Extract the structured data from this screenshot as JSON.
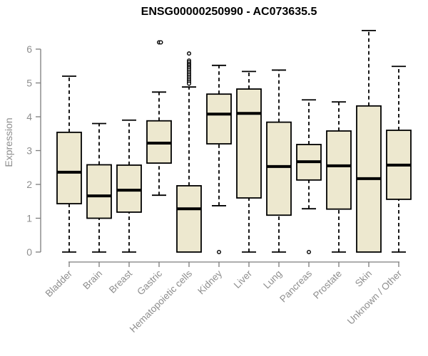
{
  "chart_data": {
    "type": "boxplot",
    "title": "ENSG00000250990 - AC073635.5",
    "ylabel": "Expression",
    "xlabel": "",
    "ylim": [
      0,
      6.6
    ],
    "yticks": [
      0,
      1,
      2,
      3,
      4,
      5,
      6
    ],
    "grid": false,
    "legend": "none",
    "colors": {
      "box_fill": "#EDE8CF",
      "box_stroke": "#000000",
      "axis_line": "#7d7d7d",
      "axis_text": "#8e8e8e",
      "title_text": "#000000"
    },
    "categories": [
      "Bladder",
      "Brain",
      "Breast",
      "Gastric",
      "Hematopoietic cells",
      "Kidney",
      "Liver",
      "Lung",
      "Pancreas",
      "Prostate",
      "Skin",
      "Unknown / Other"
    ],
    "series": [
      {
        "category": "Bladder",
        "whisker_low": 0.0,
        "q1": 1.43,
        "median": 2.36,
        "q3": 3.54,
        "whisker_high": 5.2,
        "outliers": []
      },
      {
        "category": "Brain",
        "whisker_low": 0.0,
        "q1": 1.0,
        "median": 1.66,
        "q3": 2.58,
        "whisker_high": 3.8,
        "outliers": []
      },
      {
        "category": "Breast",
        "whisker_low": 0.0,
        "q1": 1.18,
        "median": 1.83,
        "q3": 2.57,
        "whisker_high": 3.9,
        "outliers": []
      },
      {
        "category": "Gastric",
        "whisker_low": 1.68,
        "q1": 2.63,
        "median": 3.22,
        "q3": 3.88,
        "whisker_high": 4.73,
        "outliers": [
          6.2,
          6.2
        ]
      },
      {
        "category": "Hematopoietic cells",
        "whisker_low": 0.0,
        "q1": 0.0,
        "median": 1.28,
        "q3": 1.96,
        "whisker_high": 4.88,
        "outliers": [
          5.87,
          5.66,
          5.61,
          5.56,
          5.52,
          5.47,
          5.43,
          5.38,
          5.33,
          5.28,
          5.23,
          5.18,
          5.13,
          5.08,
          5.03,
          4.98
        ]
      },
      {
        "category": "Kidney",
        "whisker_low": 1.37,
        "q1": 3.2,
        "median": 4.08,
        "q3": 4.67,
        "whisker_high": 5.52,
        "outliers": [
          0.0
        ]
      },
      {
        "category": "Liver",
        "whisker_low": 0.0,
        "q1": 1.6,
        "median": 4.1,
        "q3": 4.82,
        "whisker_high": 5.34,
        "outliers": []
      },
      {
        "category": "Lung",
        "whisker_low": 0.0,
        "q1": 1.09,
        "median": 2.53,
        "q3": 3.84,
        "whisker_high": 5.38,
        "outliers": []
      },
      {
        "category": "Pancreas",
        "whisker_low": 1.28,
        "q1": 2.13,
        "median": 2.67,
        "q3": 3.18,
        "whisker_high": 4.5,
        "outliers": [
          0.0
        ]
      },
      {
        "category": "Prostate",
        "whisker_low": 0.0,
        "q1": 1.27,
        "median": 2.55,
        "q3": 3.58,
        "whisker_high": 4.44,
        "outliers": []
      },
      {
        "category": "Skin",
        "whisker_low": 0.0,
        "q1": 0.0,
        "median": 2.17,
        "q3": 4.32,
        "whisker_high": 6.55,
        "outliers": []
      },
      {
        "category": "Unknown / Other",
        "whisker_low": 0.0,
        "q1": 1.56,
        "median": 2.57,
        "q3": 3.6,
        "whisker_high": 5.49,
        "outliers": []
      }
    ]
  }
}
